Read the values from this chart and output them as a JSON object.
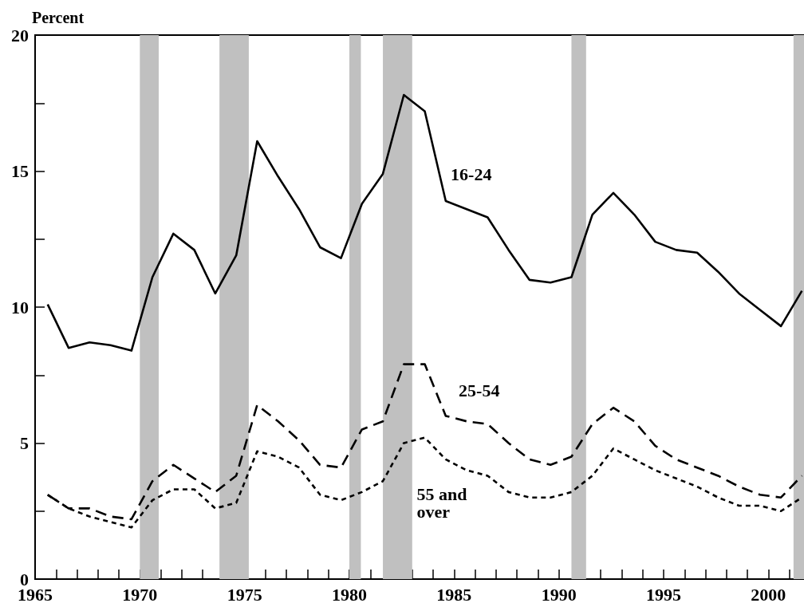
{
  "chart_data": {
    "type": "line",
    "ylabel": "Percent",
    "x": [
      1965.6,
      1966.6,
      1967.6,
      1968.6,
      1969.6,
      1970.6,
      1971.6,
      1972.6,
      1973.6,
      1974.6,
      1975.6,
      1976.6,
      1977.6,
      1978.6,
      1979.6,
      1980.6,
      1981.6,
      1982.6,
      1983.6,
      1984.6,
      1985.6,
      1986.6,
      1987.6,
      1988.6,
      1989.6,
      1990.6,
      1991.6,
      1992.6,
      1993.6,
      1994.6,
      1995.6,
      1996.6,
      1997.6,
      1998.6,
      1999.6,
      2000.6,
      2001.6
    ],
    "series": [
      {
        "name": "16-24",
        "color": "#000000",
        "line_style": "solid",
        "values": [
          10.1,
          8.5,
          8.7,
          8.6,
          8.4,
          11.1,
          12.7,
          12.1,
          10.5,
          11.9,
          16.1,
          14.8,
          13.6,
          12.2,
          11.8,
          13.8,
          14.9,
          17.8,
          17.2,
          13.9,
          13.6,
          13.3,
          12.1,
          11.0,
          10.9,
          11.1,
          13.4,
          14.2,
          13.4,
          12.4,
          12.1,
          12.0,
          11.3,
          10.5,
          9.9,
          9.3,
          10.6
        ]
      },
      {
        "name": "25-54",
        "color": "#000000",
        "line_style": "dashed",
        "values": [
          3.1,
          2.6,
          2.6,
          2.3,
          2.2,
          3.6,
          4.2,
          3.7,
          3.2,
          3.8,
          6.4,
          5.8,
          5.1,
          4.2,
          4.1,
          5.5,
          5.8,
          7.9,
          7.9,
          6.0,
          5.8,
          5.7,
          5.0,
          4.4,
          4.2,
          4.5,
          5.7,
          6.3,
          5.8,
          4.9,
          4.4,
          4.1,
          3.8,
          3.4,
          3.1,
          3.0,
          3.8
        ]
      },
      {
        "name": "55 and\nover",
        "color": "#000000",
        "line_style": "dotted",
        "values": [
          3.1,
          2.6,
          2.3,
          2.1,
          1.9,
          2.9,
          3.3,
          3.3,
          2.6,
          2.8,
          4.7,
          4.5,
          4.1,
          3.1,
          2.9,
          3.2,
          3.6,
          5.0,
          5.2,
          4.4,
          4.0,
          3.8,
          3.2,
          3.0,
          3.0,
          3.2,
          3.8,
          4.8,
          4.4,
          4.0,
          3.7,
          3.4,
          3.0,
          2.7,
          2.7,
          2.5,
          3.0
        ]
      }
    ],
    "bands": [
      {
        "axis": "x",
        "from": 1970.0,
        "to": 1970.9,
        "color": "#c0c0c0"
      },
      {
        "axis": "x",
        "from": 1973.8,
        "to": 1975.2,
        "color": "#c0c0c0"
      },
      {
        "axis": "x",
        "from": 1980.0,
        "to": 1980.55,
        "color": "#c0c0c0"
      },
      {
        "axis": "x",
        "from": 1981.6,
        "to": 1983.0,
        "color": "#c0c0c0"
      },
      {
        "axis": "x",
        "from": 1990.6,
        "to": 1991.3,
        "color": "#c0c0c0"
      },
      {
        "axis": "x",
        "from": 2001.2,
        "to": 2001.7,
        "color": "#c0c0c0"
      }
    ],
    "xlim": [
      1965,
      2001.7
    ],
    "xticks": [
      1965,
      {
        "value": 1966,
        "label": null
      },
      {
        "value": 1967,
        "label": null
      },
      {
        "value": 1968,
        "label": null
      },
      {
        "value": 1969,
        "label": null
      },
      1970,
      {
        "value": 1971,
        "label": null
      },
      {
        "value": 1972,
        "label": null
      },
      {
        "value": 1973,
        "label": null
      },
      {
        "value": 1974,
        "label": null
      },
      1975,
      {
        "value": 1976,
        "label": null
      },
      {
        "value": 1977,
        "label": null
      },
      {
        "value": 1978,
        "label": null
      },
      {
        "value": 1979,
        "label": null
      },
      1980,
      {
        "value": 1981,
        "label": null
      },
      {
        "value": 1982,
        "label": null
      },
      {
        "value": 1983,
        "label": null
      },
      {
        "value": 1984,
        "label": null
      },
      1985,
      {
        "value": 1986,
        "label": null
      },
      {
        "value": 1987,
        "label": null
      },
      {
        "value": 1988,
        "label": null
      },
      {
        "value": 1989,
        "label": null
      },
      1990,
      {
        "value": 1991,
        "label": null
      },
      {
        "value": 1992,
        "label": null
      },
      {
        "value": 1993,
        "label": null
      },
      {
        "value": 1994,
        "label": null
      },
      1995,
      {
        "value": 1996,
        "label": null
      },
      {
        "value": 1997,
        "label": null
      },
      {
        "value": 1998,
        "label": null
      },
      {
        "value": 1999,
        "label": null
      },
      2000,
      {
        "value": 2001,
        "label": null
      }
    ],
    "ylim": [
      0,
      20
    ],
    "yticks": [
      0,
      {
        "value": 2.5,
        "label": null
      },
      5,
      {
        "value": 7.5,
        "label": null
      },
      10,
      {
        "value": 12.5,
        "label": null
      },
      15,
      {
        "value": 17.5,
        "label": null
      },
      20
    ],
    "grid": false,
    "legend": false,
    "marker": "none"
  }
}
